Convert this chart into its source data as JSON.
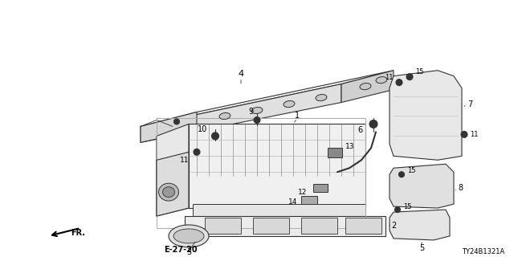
{
  "bg_color": "#ffffff",
  "diagram_code": "E-27-20",
  "part_number": "TY24B1321A",
  "gray": "#333333",
  "lgray": "#aaaaaa",
  "dgray": "#555555"
}
